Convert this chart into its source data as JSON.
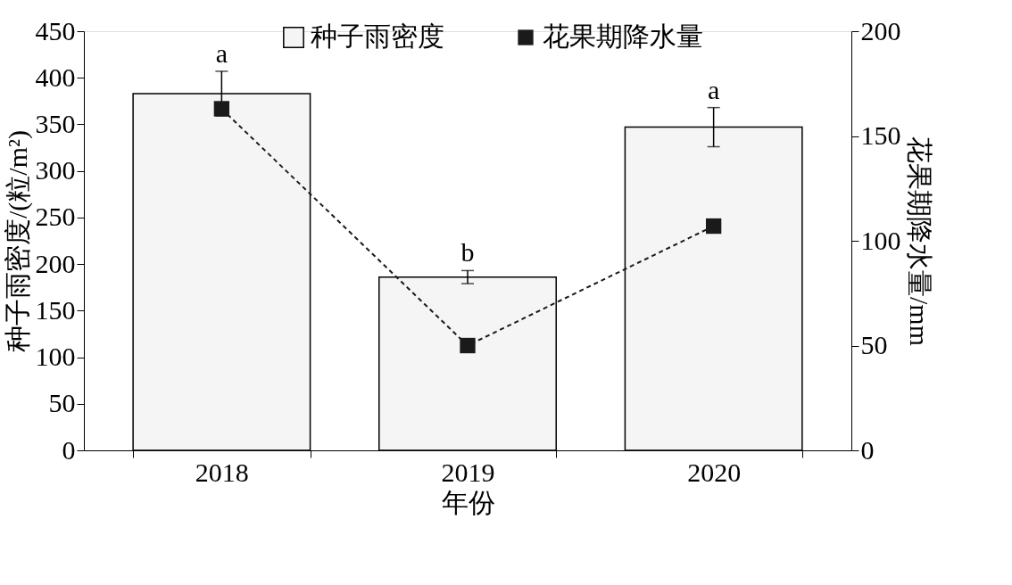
{
  "chart_data": {
    "type": "bar",
    "categories": [
      "2018",
      "2019",
      "2020"
    ],
    "xlabel": "年份",
    "ylabel": "种子雨密度/(粒/m²)",
    "y2label": "花果期降水量/mm",
    "ylim": [
      0,
      450
    ],
    "yticks": [
      0,
      50,
      100,
      150,
      200,
      250,
      300,
      350,
      400,
      450
    ],
    "y2lim": [
      0,
      200
    ],
    "y2ticks": [
      0,
      50,
      100,
      150,
      200
    ],
    "series": [
      {
        "name": "种子雨密度",
        "type": "bar",
        "color": "#f5f5f5",
        "values": [
          383,
          186,
          347
        ],
        "errors": [
          24,
          7,
          21
        ]
      },
      {
        "name": "花果期降水量",
        "type": "line",
        "axis": "y2",
        "color": "#1a1a1a",
        "values": [
          163,
          50,
          107
        ]
      }
    ],
    "marker": "square",
    "line_style": "dashed",
    "legend": "top right",
    "grid": false,
    "annotations": [
      {
        "text": "a",
        "x": "2018",
        "y": 407
      },
      {
        "text": "b",
        "x": "2019",
        "y": 193
      },
      {
        "text": "a",
        "x": "2020",
        "y": 368
      }
    ]
  }
}
